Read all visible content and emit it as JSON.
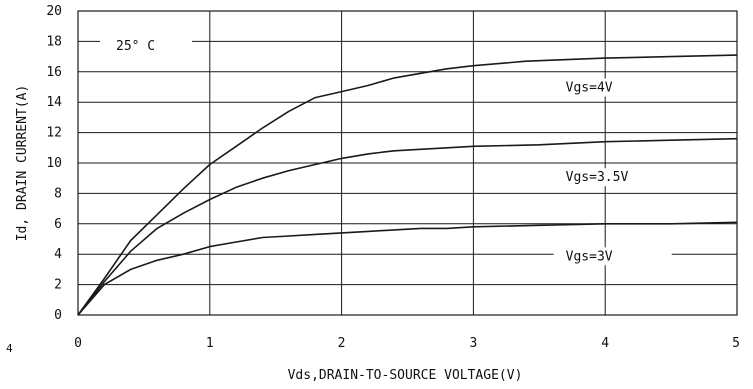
{
  "chart_data": {
    "type": "line",
    "xlabel": "Vds,DRAIN-TO-SOURCE VOLTAGE(V)",
    "ylabel": "Id, DRAIN CURRENT(A)",
    "xlim": [
      0,
      5
    ],
    "ylim": [
      0,
      20
    ],
    "x_ticks": [
      "0",
      "1",
      "2",
      "3",
      "4",
      "5"
    ],
    "y_ticks": [
      "0",
      "2",
      "4",
      "6",
      "8",
      "10",
      "12",
      "14",
      "16",
      "18",
      "20"
    ],
    "grid": true,
    "temperature_label": "25° C",
    "series": [
      {
        "name": "Vgs=4V",
        "x": [
          0,
          0.2,
          0.4,
          0.6,
          0.8,
          1.0,
          1.2,
          1.4,
          1.6,
          1.8,
          2.0,
          2.2,
          2.4,
          2.6,
          2.8,
          3.0,
          3.4,
          4.0,
          4.5,
          5.0
        ],
        "y": [
          0,
          2.4,
          4.9,
          6.6,
          8.3,
          9.9,
          11.1,
          12.3,
          13.4,
          14.3,
          14.7,
          15.1,
          15.6,
          15.9,
          16.2,
          16.4,
          16.7,
          16.9,
          17.0,
          17.1
        ]
      },
      {
        "name": "Vgs=3.5V",
        "x": [
          0,
          0.2,
          0.4,
          0.6,
          0.8,
          1.0,
          1.2,
          1.4,
          1.6,
          1.8,
          2.0,
          2.2,
          2.4,
          2.6,
          2.8,
          3.0,
          3.5,
          4.0,
          4.5,
          5.0
        ],
        "y": [
          0,
          2.2,
          4.2,
          5.7,
          6.7,
          7.6,
          8.4,
          9.0,
          9.5,
          9.9,
          10.3,
          10.6,
          10.8,
          10.9,
          11.0,
          11.1,
          11.2,
          11.4,
          11.5,
          11.6
        ]
      },
      {
        "name": "Vgs=3V",
        "x": [
          0,
          0.2,
          0.4,
          0.6,
          0.8,
          1.0,
          1.2,
          1.4,
          1.6,
          1.8,
          2.0,
          2.2,
          2.4,
          2.6,
          2.8,
          3.0,
          3.5,
          4.0,
          4.5,
          5.0
        ],
        "y": [
          0,
          2.0,
          3.0,
          3.6,
          4.0,
          4.5,
          4.8,
          5.1,
          5.2,
          5.3,
          5.4,
          5.5,
          5.6,
          5.7,
          5.7,
          5.8,
          5.9,
          6.0,
          6.0,
          6.1
        ]
      }
    ],
    "series_labels": [
      {
        "text": "Vgs=4V",
        "x": 3.7,
        "y": 14.7
      },
      {
        "text": "Vgs=3.5V",
        "x": 3.7,
        "y": 8.8
      },
      {
        "text": "Vgs=3V",
        "x": 3.7,
        "y": 3.6
      }
    ]
  },
  "stray_mark": "4"
}
